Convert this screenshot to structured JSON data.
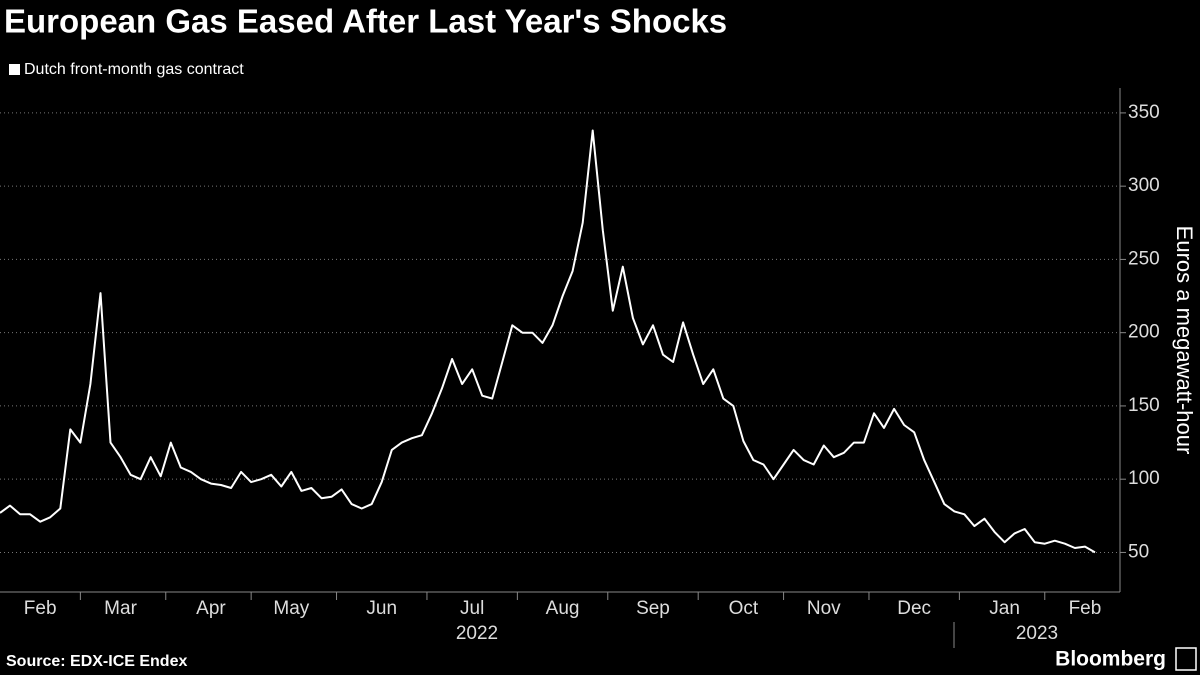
{
  "chart_data": {
    "type": "line",
    "title": "European Gas Eased After Last Year's Shocks",
    "y_label": "Euros a megawatt-hour",
    "source": "Source: EDX-ICE Endex",
    "brand": "Bloomberg",
    "categories": [
      null,
      null,
      null,
      null,
      "Feb",
      null,
      null,
      null,
      null,
      null,
      null,
      null,
      "Mar",
      null,
      null,
      null,
      null,
      null,
      null,
      null,
      null,
      "Apr",
      null,
      null,
      null,
      null,
      null,
      null,
      null,
      "May",
      null,
      null,
      null,
      null,
      null,
      null,
      null,
      null,
      "Jun",
      null,
      null,
      null,
      null,
      null,
      null,
      null,
      null,
      "Jul",
      null,
      null,
      null,
      null,
      null,
      null,
      null,
      null,
      "Aug",
      null,
      null,
      null,
      null,
      null,
      null,
      null,
      null,
      "Sep",
      null,
      null,
      null,
      null,
      null,
      null,
      null,
      null,
      "Oct",
      null,
      null,
      null,
      null,
      null,
      null,
      null,
      "Nov",
      null,
      null,
      null,
      null,
      null,
      null,
      null,
      null,
      "Dec",
      null,
      null,
      null,
      null,
      null,
      null,
      null,
      null,
      "Jan",
      null,
      null,
      null,
      null,
      null,
      null,
      null,
      "Feb",
      null
    ],
    "years": [
      "2022",
      "2023"
    ],
    "series": [
      {
        "name": "Dutch front-month gas contract",
        "color": "#ffffff",
        "values": [
          77,
          82,
          76,
          76,
          71,
          74,
          80,
          134,
          125,
          165,
          227,
          125,
          115,
          103,
          100,
          115,
          102,
          125,
          108,
          105,
          100,
          97,
          96,
          94,
          105,
          98,
          100,
          103,
          95,
          105,
          92,
          94,
          87,
          88,
          93,
          83,
          80,
          83,
          98,
          120,
          125,
          128,
          130,
          145,
          162,
          182,
          165,
          175,
          157,
          155,
          180,
          205,
          200,
          200,
          193,
          205,
          225,
          242,
          275,
          338,
          270,
          215,
          245,
          210,
          192,
          205,
          185,
          180,
          207,
          185,
          165,
          175,
          155,
          150,
          126,
          113,
          110,
          100,
          110,
          120,
          113,
          110,
          123,
          115,
          118,
          125,
          125,
          145,
          135,
          148,
          137,
          132,
          113,
          98,
          83,
          78,
          76,
          68,
          73,
          64,
          57,
          63,
          66,
          57,
          56,
          58,
          56,
          53,
          54,
          50
        ]
      }
    ],
    "ylim": [
      23,
      367
    ],
    "yticks": [
      50,
      100,
      150,
      200,
      250,
      300,
      350
    ],
    "grid": true
  }
}
